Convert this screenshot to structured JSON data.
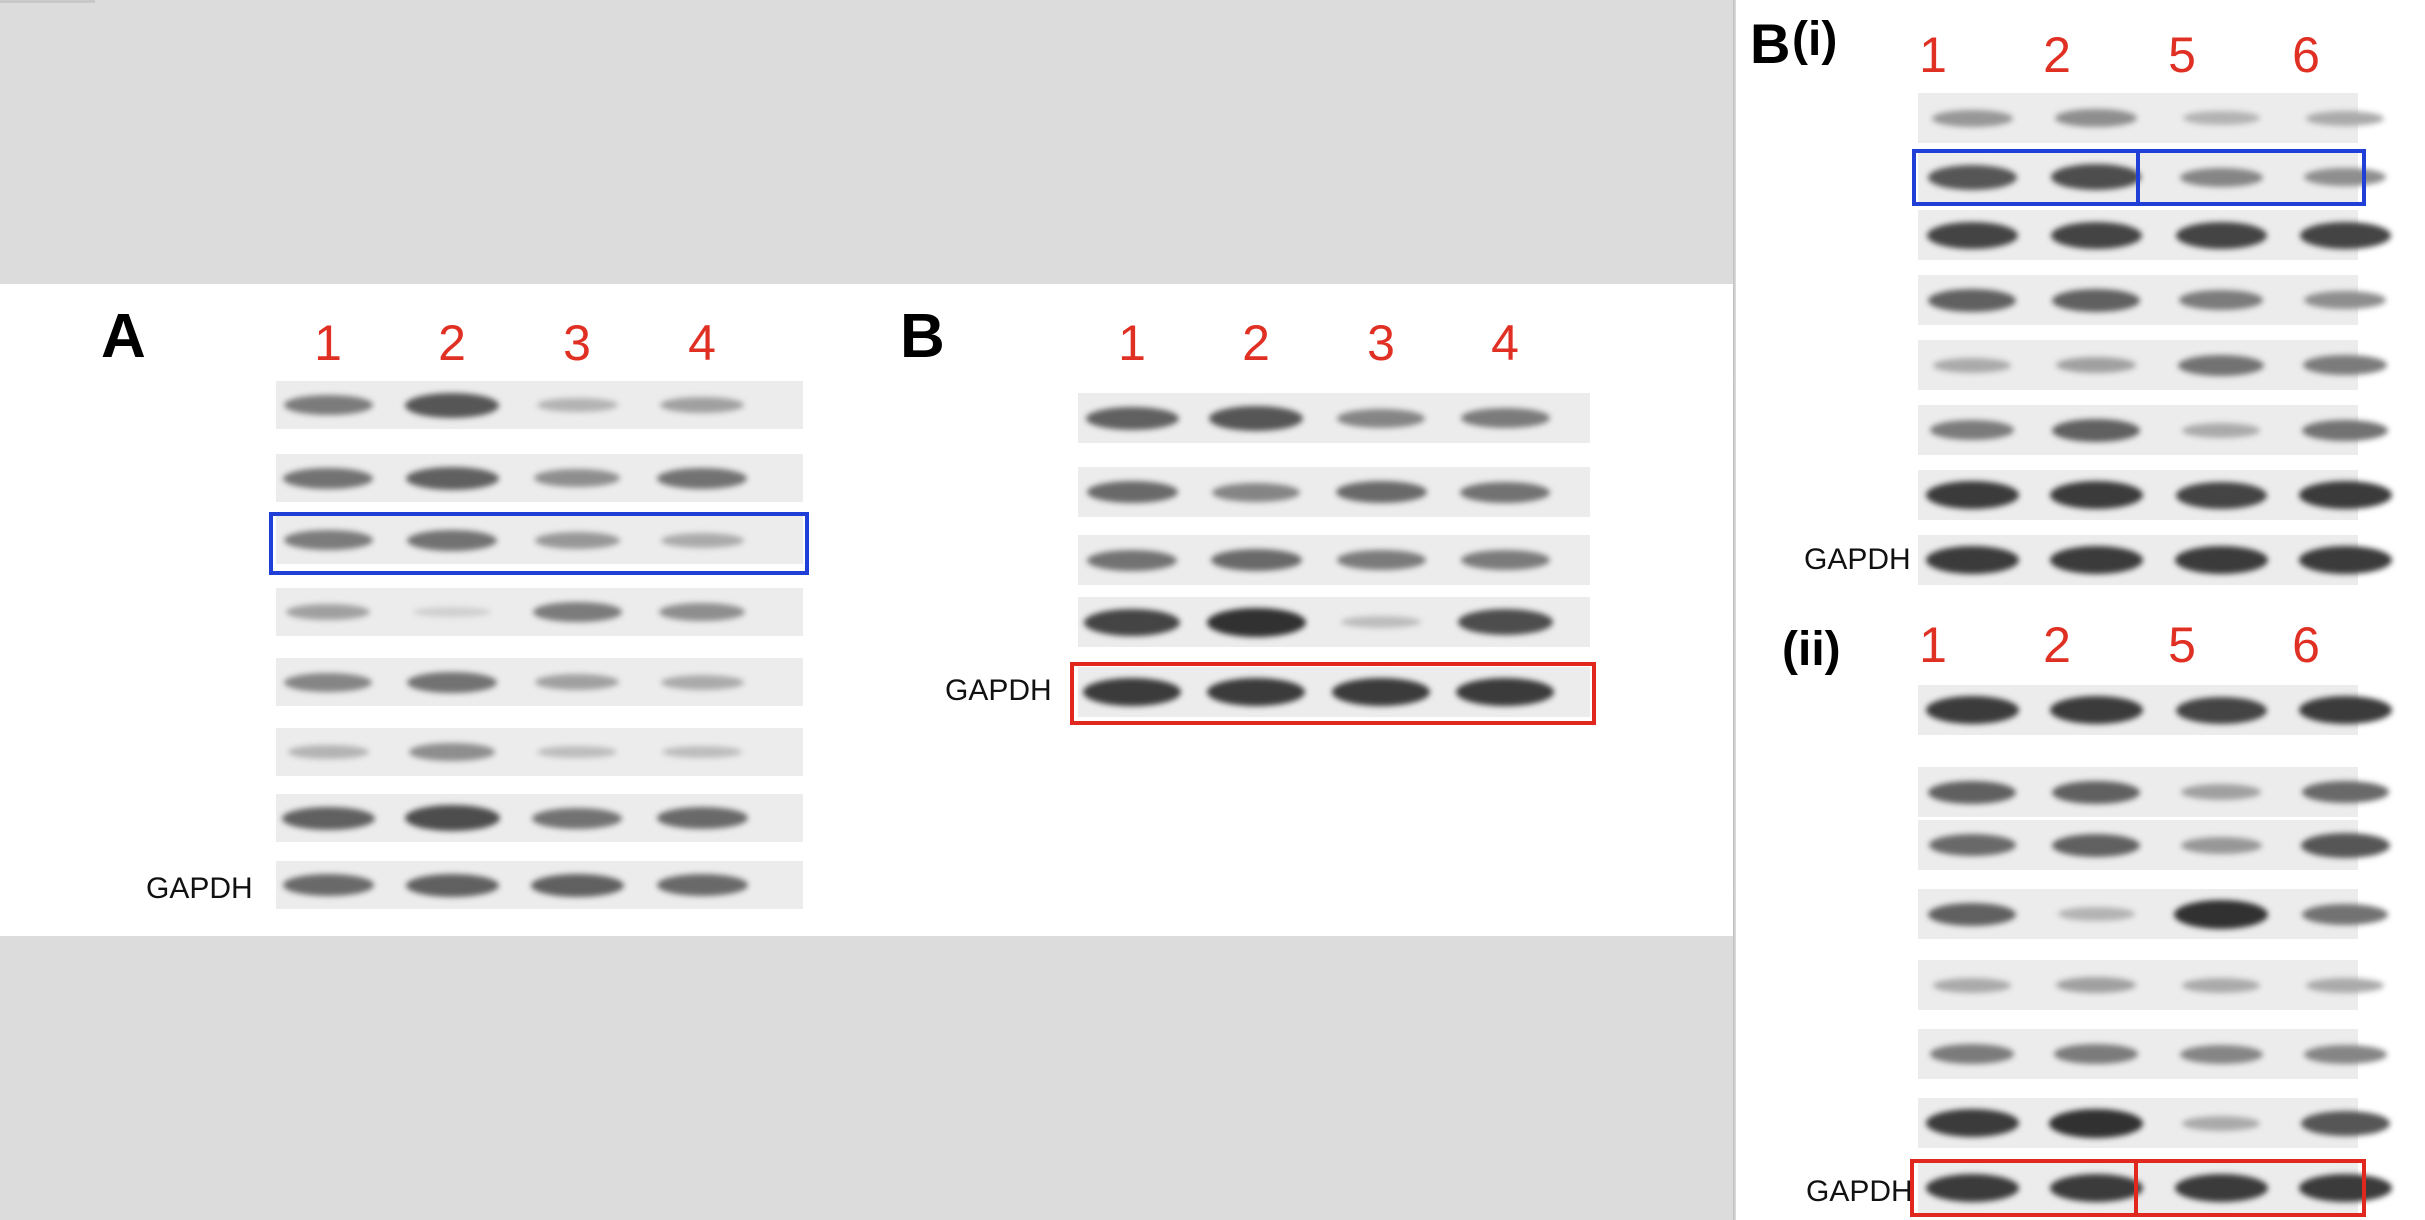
{
  "panels": {
    "A": {
      "letter": "A",
      "lanes": [
        "1",
        "2",
        "3",
        "4"
      ],
      "control_label": "GAPDH",
      "band_intensity": [
        [
          0.55,
          0.75,
          0.25,
          0.35
        ],
        [
          0.6,
          0.7,
          0.45,
          0.6
        ],
        [
          0.55,
          0.6,
          0.4,
          0.3
        ],
        [
          0.35,
          0.1,
          0.55,
          0.45
        ],
        [
          0.5,
          0.6,
          0.35,
          0.3
        ],
        [
          0.25,
          0.45,
          0.2,
          0.2
        ],
        [
          0.7,
          0.8,
          0.6,
          0.65
        ],
        [
          0.65,
          0.7,
          0.7,
          0.65
        ]
      ]
    },
    "B": {
      "letter": "B",
      "lanes": [
        "1",
        "2",
        "3",
        "4"
      ],
      "control_label": "GAPDH",
      "band_intensity": [
        [
          0.7,
          0.75,
          0.5,
          0.55
        ],
        [
          0.65,
          0.5,
          0.65,
          0.6
        ],
        [
          0.6,
          0.65,
          0.55,
          0.55
        ],
        [
          0.85,
          0.95,
          0.2,
          0.8
        ],
        [
          0.9,
          0.9,
          0.9,
          0.9
        ]
      ]
    },
    "Bi": {
      "letter": "B",
      "sublabel": "(i)",
      "lanes": [
        "1",
        "2",
        "5",
        "6"
      ],
      "control_label": "GAPDH",
      "band_intensity": [
        [
          0.4,
          0.45,
          0.25,
          0.3
        ],
        [
          0.75,
          0.8,
          0.5,
          0.45
        ],
        [
          0.85,
          0.85,
          0.85,
          0.85
        ],
        [
          0.7,
          0.7,
          0.55,
          0.45
        ],
        [
          0.3,
          0.35,
          0.6,
          0.55
        ],
        [
          0.55,
          0.7,
          0.3,
          0.6
        ],
        [
          0.9,
          0.9,
          0.85,
          0.9
        ],
        [
          0.9,
          0.9,
          0.9,
          0.9
        ]
      ]
    },
    "Bii": {
      "sublabel": "(ii)",
      "lanes": [
        "1",
        "2",
        "5",
        "6"
      ],
      "control_label": "GAPDH",
      "band_intensity": [
        [
          0.9,
          0.9,
          0.85,
          0.9
        ],
        [
          0.7,
          0.7,
          0.35,
          0.65
        ],
        [
          0.65,
          0.7,
          0.4,
          0.75
        ],
        [
          0.7,
          0.25,
          0.95,
          0.6
        ],
        [
          0.3,
          0.35,
          0.3,
          0.3
        ],
        [
          0.55,
          0.55,
          0.5,
          0.5
        ],
        [
          0.9,
          0.95,
          0.3,
          0.75
        ],
        [
          0.9,
          0.9,
          0.9,
          0.9
        ]
      ]
    }
  },
  "highlight_colors": {
    "blue": "#1f3fd6",
    "red": "#e0281e",
    "lane_numbers": "#e03024"
  }
}
